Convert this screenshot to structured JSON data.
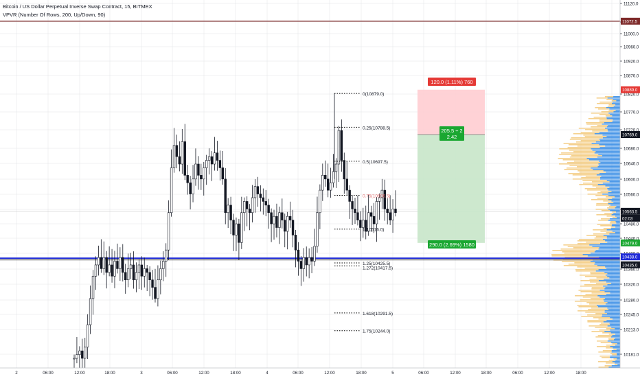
{
  "header": {
    "title": "Bitcoin / US Dollar Perpetual Inverse Swap Contract, 15, BITMEX",
    "indicator": "VPVR (Number Of Rows, 200, Up/Down, 90)"
  },
  "colors": {
    "up": "#26a69a",
    "down": "#131722",
    "candle": "#131722",
    "grid": "#e1e3e6",
    "price_line": "#7e2a2a",
    "blue_line": "#1f2bd8",
    "vp_up": "#f3c97a",
    "vp_down": "#3a8ee6",
    "stop_fill": "#ffcdd2",
    "target_fill": "#c8e6c9",
    "stop_label": "#e53935",
    "target_label": "#1aa731"
  },
  "y_axis": {
    "ticks": [
      "11120.0",
      "11025.0",
      "11000.0",
      "10960.0",
      "10920.0",
      "10870.0",
      "10820.0",
      "10770.0",
      "10720.0",
      "10680.0",
      "10640.0",
      "10600.0",
      "10560.0",
      "10520.0",
      "10480.0",
      "10440.0",
      "10400.0",
      "10360.0",
      "10320.0",
      "10280.0",
      "10245.0",
      "10213.0",
      "10181.0"
    ],
    "labels": {
      "top_line": "11072.5",
      "stop": "10889.0",
      "entry": "10769.0",
      "last": "10563.5",
      "countdown": "02:03",
      "target": "10479.0",
      "blue_a": "10438.0",
      "blue_b": "10435.0"
    }
  },
  "x_axis": {
    "ticks": [
      "2",
      "06:00",
      "12:00",
      "18:00",
      "3",
      "06:00",
      "12:00",
      "18:00",
      "4",
      "06:00",
      "12:00",
      "18:00",
      "5",
      "06:00",
      "12:00",
      "18:00",
      "06:00",
      "12:00",
      "18:00"
    ]
  },
  "fib": {
    "levels": [
      {
        "label": "0(10879.0)"
      },
      {
        "label": "0.25(10788.5)"
      },
      {
        "label": "0.5(10697.5)"
      },
      {
        "label": "0.75(10606.5)"
      },
      {
        "label": "1(10516.0)"
      },
      {
        "label": "1.25(10425.5)"
      },
      {
        "label": "1.272(10417.5)"
      },
      {
        "label": "1.618(10291.5)"
      },
      {
        "label": "1.75(10244.0)"
      }
    ]
  },
  "position": {
    "stop_label": "120.0 (1.11%) 760",
    "entry_label": "205.5 ÷ 2",
    "rr_label": "2.42",
    "target_label": "290.0 (2.69%) 1580"
  },
  "chart_data": {
    "type": "candlestick",
    "symbol": "Bitcoin / US Dollar Perpetual Inverse Swap Contract",
    "timeframe": "15",
    "exchange": "BITMEX",
    "overlays": {
      "horizontal_lines": [
        11072.5,
        10438.0,
        10435.0
      ],
      "last_price": 10563.5,
      "fibonacci": {
        "from": 10879.0,
        "to": 10516.0,
        "levels": [
          0,
          0.25,
          0.5,
          0.75,
          1,
          1.25,
          1.272,
          1.618,
          1.75
        ],
        "prices": [
          10879.0,
          10788.5,
          10697.5,
          10606.5,
          10516.0,
          10425.5,
          10417.5,
          10291.5,
          10244.0
        ]
      },
      "short_position": {
        "entry": 10769.0,
        "stop": 10889.0,
        "target": 10479.0,
        "risk_reward": 2.42
      }
    },
    "candles_close_path": [
      10170,
      10180,
      10190,
      10170,
      10200,
      10260,
      10330,
      10390,
      10420,
      10440,
      10410,
      10440,
      10400,
      10420,
      10390,
      10430,
      10410,
      10440,
      10400,
      10380,
      10410,
      10420,
      10380,
      10400,
      10420,
      10390,
      10410,
      10400,
      10380,
      10360,
      10330,
      10380,
      10410,
      10430,
      10460,
      10560,
      10680,
      10740,
      10710,
      10690,
      10750,
      10660,
      10640,
      10610,
      10650,
      10690,
      10660,
      10650,
      10680,
      10700,
      10710,
      10690,
      10720,
      10700,
      10680,
      10650,
      10560,
      10580,
      10540,
      10500,
      10530,
      10480,
      10560,
      10590,
      10570,
      10560,
      10600,
      10630,
      10610,
      10600,
      10590,
      10580,
      10560,
      10530,
      10550,
      10520,
      10560,
      10540,
      10510,
      10550,
      10540,
      10500,
      10460,
      10430,
      10410,
      10440,
      10420,
      10440,
      10430,
      10470,
      10560,
      10620,
      10660,
      10650,
      10620,
      10640,
      10670,
      10690,
      10780,
      10700,
      10650,
      10620,
      10590,
      10570,
      10560,
      10540,
      10520,
      10540,
      10510,
      10560,
      10550,
      10530,
      10590,
      10600,
      10620,
      10570,
      10560,
      10540,
      10570,
      10560
    ],
    "volume_profile_note": "VPVR 200 rows, Up/Down, 90% value area"
  }
}
